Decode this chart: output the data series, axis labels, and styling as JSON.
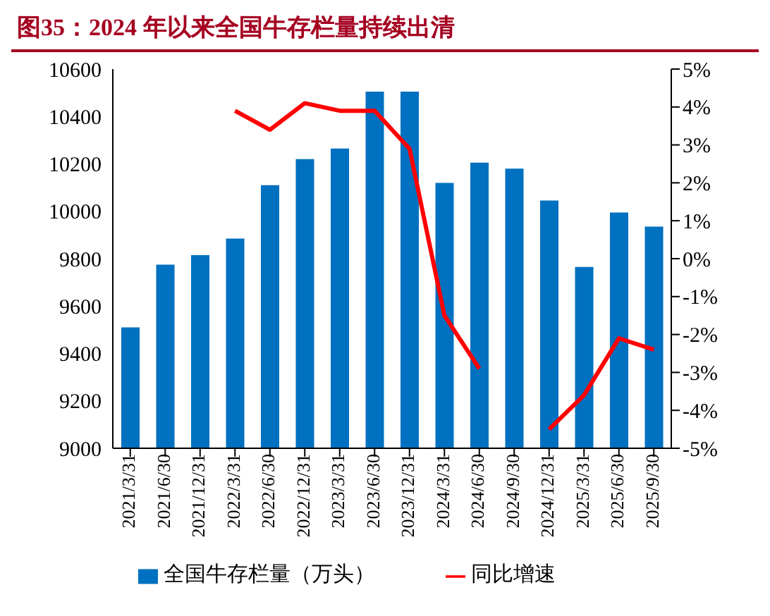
{
  "chart_data": {
    "type": "bar",
    "title": "图35：2024 年以来全国牛存栏量持续出清",
    "categories": [
      "2021/3/31",
      "2021/6/30",
      "2021/12/31",
      "2022/3/31",
      "2022/6/30",
      "2022/12/31",
      "2023/3/31",
      "2023/6/30",
      "2023/12/31",
      "2024/3/31",
      "2024/6/30",
      "2024/9/30",
      "2024/12/31",
      "2025/3/31",
      "2025/6/30",
      "2025/9/30"
    ],
    "series": [
      {
        "name": "全国牛存栏量（万头）",
        "color": "#0070c0",
        "values": [
          9510,
          9775,
          9815,
          9885,
          10110,
          10220,
          10265,
          10505,
          10505,
          10120,
          10205,
          10180,
          10045,
          9765,
          9995,
          9935
        ]
      },
      {
        "name": "同比增速",
        "type": "line",
        "axis": "y2",
        "color": "#ff0000",
        "values": [
          null,
          null,
          null,
          3.9,
          3.4,
          4.1,
          3.9,
          3.9,
          2.9,
          -1.5,
          -2.9,
          null,
          -4.5,
          -3.6,
          -2.1,
          -2.4
        ]
      }
    ],
    "ylim": [
      9000,
      10600
    ],
    "yticks": [
      9000,
      9200,
      9400,
      9600,
      9800,
      10000,
      10200,
      10400,
      10600
    ],
    "y2lim": [
      -5,
      5
    ],
    "y2ticks": [
      {
        "value": -5,
        "label": "-5%"
      },
      {
        "value": -4,
        "label": "-4%"
      },
      {
        "value": -3,
        "label": "-3%"
      },
      {
        "value": -2,
        "label": "-2%"
      },
      {
        "value": -1,
        "label": "-1%"
      },
      {
        "value": 0,
        "label": "0%"
      },
      {
        "value": 1,
        "label": "1%"
      },
      {
        "value": 2,
        "label": "2%"
      },
      {
        "value": 3,
        "label": "3%"
      },
      {
        "value": 4,
        "label": "4%"
      },
      {
        "value": 5,
        "label": "5%"
      }
    ],
    "grid": false,
    "legend": "bottom",
    "marker": "none",
    "line_style": "solid"
  }
}
